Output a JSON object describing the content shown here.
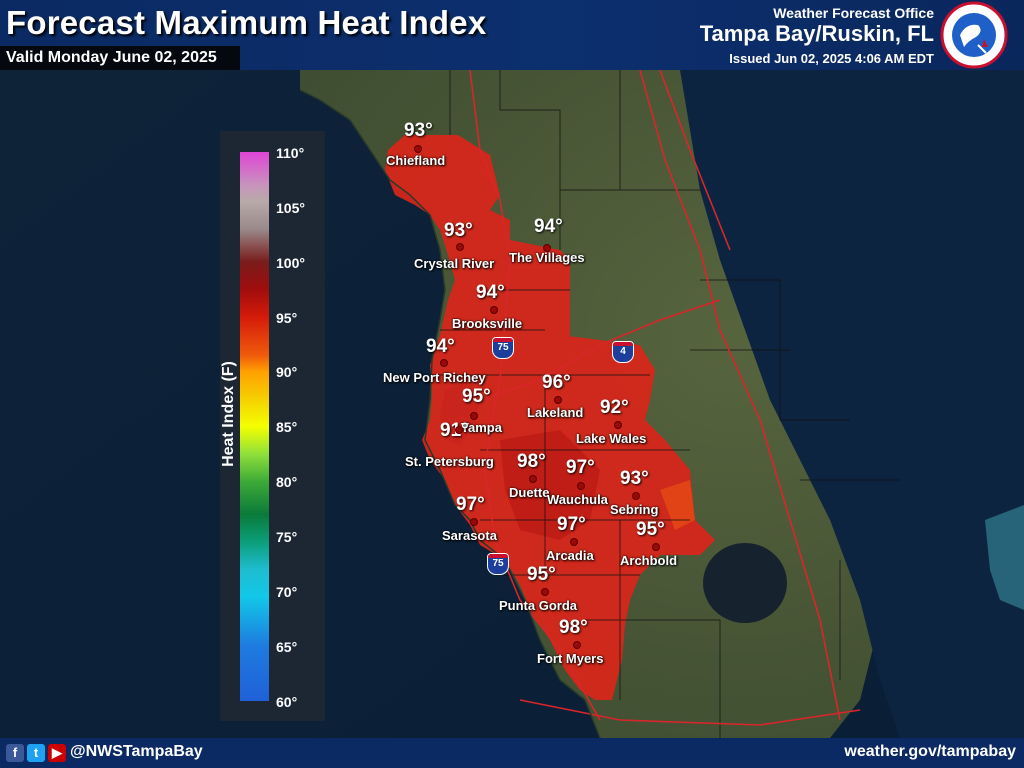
{
  "header": {
    "title": "Forecast Maximum Heat Index",
    "valid": "Valid Monday June 02, 2025",
    "office_label": "Weather Forecast Office",
    "office_name": "Tampa Bay/Ruskin, FL",
    "issued": "Issued Jun 02, 2025 4:06 AM EDT"
  },
  "legend": {
    "title": "Heat Index (F)",
    "ticks": [
      "110°",
      "105°",
      "100°",
      "95°",
      "90°",
      "85°",
      "80°",
      "75°",
      "70°",
      "65°",
      "60°"
    ]
  },
  "highways": {
    "i75_a": "75",
    "i75_b": "75",
    "i4": "4"
  },
  "locations": [
    {
      "id": "chiefland",
      "city": "Chiefland",
      "temp": "93°"
    },
    {
      "id": "crystal-river",
      "city": "Crystal River",
      "temp": "93°"
    },
    {
      "id": "the-villages",
      "city": "The Villages",
      "temp": "94°"
    },
    {
      "id": "brooksville",
      "city": "Brooksville",
      "temp": "94°"
    },
    {
      "id": "new-port-richey",
      "city": "New Port Richey",
      "temp": "94°"
    },
    {
      "id": "tampa",
      "city": "Tampa",
      "temp": "95°"
    },
    {
      "id": "st-petersburg",
      "city": "St. Petersburg",
      "temp": "91°"
    },
    {
      "id": "lakeland",
      "city": "Lakeland",
      "temp": "96°"
    },
    {
      "id": "lake-wales",
      "city": "Lake Wales",
      "temp": "92°"
    },
    {
      "id": "duette",
      "city": "Duette",
      "temp": "98°"
    },
    {
      "id": "wauchula",
      "city": "Wauchula",
      "temp": "97°"
    },
    {
      "id": "sebring",
      "city": "Sebring",
      "temp": "93°"
    },
    {
      "id": "sarasota",
      "city": "Sarasota",
      "temp": "97°"
    },
    {
      "id": "arcadia",
      "city": "Arcadia",
      "temp": "97°"
    },
    {
      "id": "archbold",
      "city": "Archbold",
      "temp": "95°"
    },
    {
      "id": "punta-gorda",
      "city": "Punta Gorda",
      "temp": "95°"
    },
    {
      "id": "fort-myers",
      "city": "Fort Myers",
      "temp": "98°"
    }
  ],
  "footer": {
    "social_icons": [
      "facebook-icon",
      "twitter-icon",
      "youtube-icon"
    ],
    "handle": "@NWSTampaBay",
    "website": "weather.gov/tampabay"
  },
  "colors": {
    "header_bg": "#0b2a63",
    "heat_fill": "#d8261a",
    "heat_fill_light": "#e04a18",
    "land": "#4a5a3a",
    "water": "#0f2a4a"
  }
}
